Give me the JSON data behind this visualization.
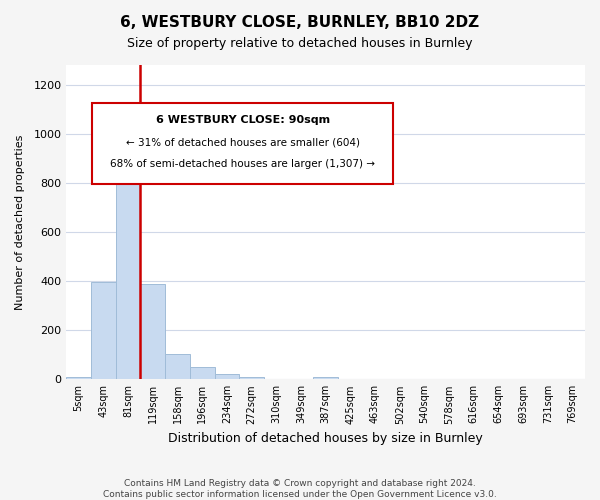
{
  "title": "6, WESTBURY CLOSE, BURNLEY, BB10 2DZ",
  "subtitle": "Size of property relative to detached houses in Burnley",
  "xlabel": "Distribution of detached houses by size in Burnley",
  "ylabel": "Number of detached properties",
  "bin_labels": [
    "5sqm",
    "43sqm",
    "81sqm",
    "119sqm",
    "158sqm",
    "196sqm",
    "234sqm",
    "272sqm",
    "310sqm",
    "349sqm",
    "387sqm",
    "425sqm",
    "463sqm",
    "502sqm",
    "540sqm",
    "578sqm",
    "616sqm",
    "654sqm",
    "693sqm",
    "731sqm",
    "769sqm"
  ],
  "bar_values": [
    10,
    395,
    950,
    390,
    105,
    52,
    22,
    10,
    0,
    0,
    10,
    0,
    0,
    0,
    0,
    0,
    0,
    0,
    0,
    0,
    0
  ],
  "bar_color": "#c8daf0",
  "bar_edge_color": "#a0bcd8",
  "property_line_color": "#cc0000",
  "annotation_text_line1": "6 WESTBURY CLOSE: 90sqm",
  "annotation_text_line2": "← 31% of detached houses are smaller (604)",
  "annotation_text_line3": "68% of semi-detached houses are larger (1,307) →",
  "footer_line1": "Contains HM Land Registry data © Crown copyright and database right 2024.",
  "footer_line2": "Contains public sector information licensed under the Open Government Licence v3.0.",
  "ylim": [
    0,
    1280
  ],
  "yticks": [
    0,
    200,
    400,
    600,
    800,
    1000,
    1200
  ],
  "bg_color": "#f5f5f5",
  "plot_bg_color": "#ffffff",
  "grid_color": "#d0d8e8"
}
